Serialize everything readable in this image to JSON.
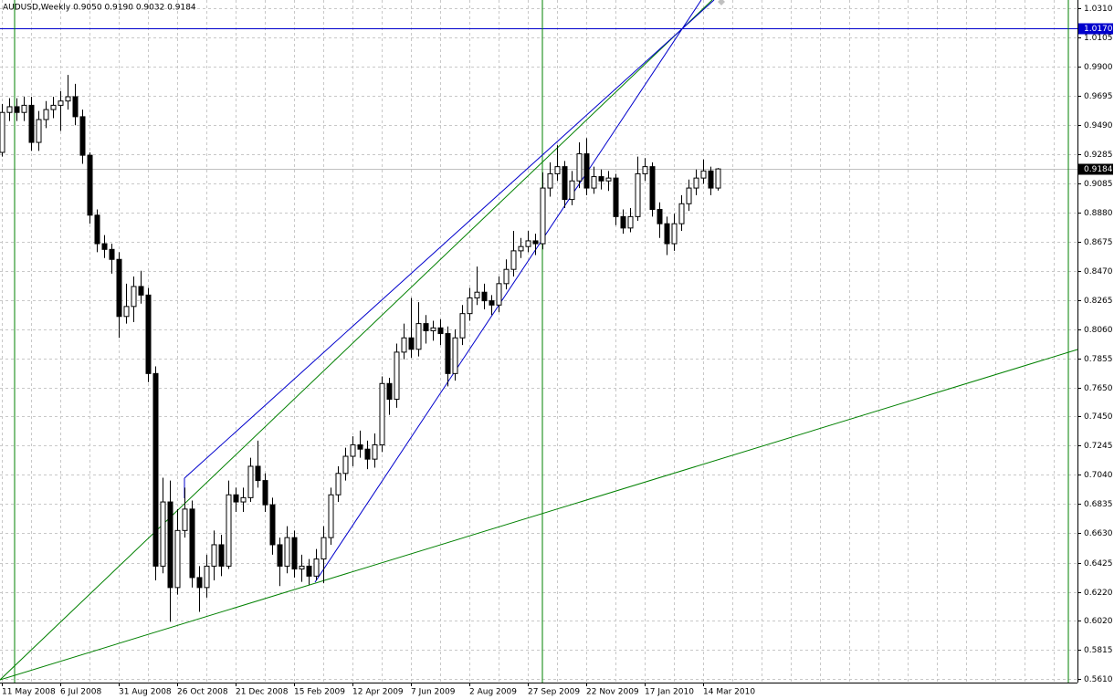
{
  "chart_data": {
    "type": "candlestick",
    "title": "AUDUSD,Weekly 0.9050 0.9190 0.9032 0.9184",
    "categories": [
      "11 May 2008",
      null,
      null,
      null,
      null,
      null,
      null,
      null,
      "6 Jul 2008",
      null,
      null,
      null,
      null,
      null,
      null,
      null,
      "31 Aug 2008",
      null,
      null,
      null,
      null,
      null,
      null,
      null,
      "26 Oct 2008",
      null,
      null,
      null,
      null,
      null,
      null,
      null,
      "21 Dec 2008",
      null,
      null,
      null,
      null,
      null,
      null,
      null,
      "15 Feb 2009",
      null,
      null,
      null,
      null,
      null,
      null,
      null,
      "12 Apr 2009",
      null,
      null,
      null,
      null,
      null,
      null,
      null,
      "7 Jun 2009",
      null,
      null,
      null,
      null,
      null,
      null,
      null,
      "2 Aug 2009",
      null,
      null,
      null,
      null,
      null,
      null,
      null,
      "27 Sep 2009",
      null,
      null,
      null,
      null,
      null,
      null,
      null,
      "22 Nov 2009",
      null,
      null,
      null,
      null,
      null,
      null,
      null,
      "17 Jan 2010",
      null,
      null,
      null,
      null,
      null,
      null,
      null,
      "14 Mar 2010",
      null,
      null
    ],
    "open": [
      0.93,
      0.958,
      0.962,
      0.958,
      0.963,
      0.937,
      0.953,
      0.96,
      0.963,
      0.966,
      0.969,
      0.955,
      0.928,
      0.886,
      0.866,
      0.862,
      0.855,
      0.815,
      0.822,
      0.836,
      0.83,
      0.775,
      0.64,
      0.685,
      0.625,
      0.665,
      0.68,
      0.632,
      0.625,
      0.64,
      0.655,
      0.64,
      0.69,
      0.685,
      0.688,
      0.71,
      0.7,
      0.683,
      0.655,
      0.64,
      0.66,
      0.638,
      0.64,
      0.633,
      0.645,
      0.66,
      0.69,
      0.705,
      0.717,
      0.725,
      0.722,
      0.715,
      0.725,
      0.768,
      0.757,
      0.79,
      0.8,
      0.792,
      0.81,
      0.805,
      0.807,
      0.803,
      0.775,
      0.8,
      0.817,
      0.828,
      0.832,
      0.826,
      0.823,
      0.838,
      0.848,
      0.861,
      0.864,
      0.868,
      0.866,
      0.905,
      0.915,
      0.92,
      0.897,
      0.91,
      0.929,
      0.905,
      0.913,
      0.91,
      0.912,
      0.885,
      0.877,
      0.885,
      0.915,
      0.92,
      0.89,
      0.88,
      0.866,
      0.88,
      0.894,
      0.905,
      0.912,
      0.917,
      0.905
    ],
    "high": [
      0.964,
      0.968,
      0.968,
      0.969,
      0.969,
      0.959,
      0.966,
      0.969,
      0.973,
      0.9843,
      0.978,
      0.96,
      0.93,
      0.89,
      0.872,
      0.866,
      0.86,
      0.838,
      0.843,
      0.847,
      0.835,
      0.78,
      0.702,
      0.7,
      0.68,
      0.695,
      0.686,
      0.64,
      0.648,
      0.665,
      0.662,
      0.7,
      0.695,
      0.695,
      0.716,
      0.728,
      0.705,
      0.688,
      0.66,
      0.668,
      0.665,
      0.648,
      0.645,
      0.652,
      0.668,
      0.695,
      0.71,
      0.723,
      0.731,
      0.735,
      0.728,
      0.733,
      0.773,
      0.772,
      0.796,
      0.81,
      0.828,
      0.825,
      0.816,
      0.812,
      0.813,
      0.808,
      0.806,
      0.823,
      0.835,
      0.85,
      0.838,
      0.83,
      0.843,
      0.855,
      0.875,
      0.87,
      0.875,
      0.873,
      0.916,
      0.923,
      0.935,
      0.924,
      0.917,
      0.937,
      0.94,
      0.92,
      0.918,
      0.917,
      0.915,
      0.89,
      0.891,
      0.927,
      0.926,
      0.923,
      0.895,
      0.885,
      0.887,
      0.9,
      0.911,
      0.918,
      0.925,
      0.92,
      0.919
    ],
    "low": [
      0.927,
      0.952,
      0.952,
      0.952,
      0.931,
      0.931,
      0.947,
      0.954,
      0.945,
      0.96,
      0.949,
      0.922,
      0.88,
      0.86,
      0.856,
      0.845,
      0.8,
      0.81,
      0.811,
      0.824,
      0.769,
      0.63,
      0.635,
      0.601,
      0.62,
      0.66,
      0.625,
      0.608,
      0.618,
      0.63,
      0.633,
      0.638,
      0.678,
      0.678,
      0.685,
      0.695,
      0.678,
      0.648,
      0.626,
      0.635,
      0.632,
      0.629,
      0.627,
      0.63,
      0.628,
      0.655,
      0.685,
      0.7,
      0.71,
      0.716,
      0.708,
      0.709,
      0.72,
      0.746,
      0.751,
      0.785,
      0.786,
      0.787,
      0.796,
      0.798,
      0.795,
      0.766,
      0.77,
      0.795,
      0.812,
      0.823,
      0.82,
      0.816,
      0.818,
      0.834,
      0.843,
      0.856,
      0.86,
      0.858,
      0.862,
      0.899,
      0.91,
      0.891,
      0.893,
      0.905,
      0.9,
      0.901,
      0.904,
      0.903,
      0.879,
      0.873,
      0.874,
      0.882,
      0.91,
      0.885,
      0.87,
      0.858,
      0.861,
      0.875,
      0.889,
      0.9,
      0.908,
      0.9,
      0.9032
    ],
    "close": [
      0.958,
      0.962,
      0.958,
      0.963,
      0.937,
      0.953,
      0.96,
      0.963,
      0.966,
      0.969,
      0.955,
      0.928,
      0.886,
      0.866,
      0.862,
      0.855,
      0.815,
      0.822,
      0.836,
      0.83,
      0.775,
      0.64,
      0.685,
      0.625,
      0.665,
      0.68,
      0.632,
      0.625,
      0.64,
      0.655,
      0.64,
      0.69,
      0.685,
      0.688,
      0.71,
      0.7,
      0.683,
      0.655,
      0.64,
      0.66,
      0.638,
      0.64,
      0.633,
      0.645,
      0.66,
      0.69,
      0.705,
      0.717,
      0.725,
      0.722,
      0.715,
      0.725,
      0.768,
      0.757,
      0.79,
      0.8,
      0.792,
      0.81,
      0.805,
      0.807,
      0.803,
      0.775,
      0.8,
      0.817,
      0.828,
      0.832,
      0.826,
      0.823,
      0.838,
      0.848,
      0.861,
      0.864,
      0.868,
      0.866,
      0.905,
      0.915,
      0.92,
      0.897,
      0.91,
      0.929,
      0.905,
      0.913,
      0.91,
      0.912,
      0.885,
      0.877,
      0.885,
      0.915,
      0.92,
      0.89,
      0.88,
      0.866,
      0.88,
      0.894,
      0.905,
      0.912,
      0.917,
      0.905,
      0.9184
    ],
    "up_color": "#ffffff",
    "down_color": "#000000",
    "ylim": [
      0.5584,
      1.0368
    ],
    "yticks": [
      {
        "value": 0.561,
        "label": "0.5610"
      },
      {
        "value": 0.5815,
        "label": "0.5815"
      },
      {
        "value": 0.602,
        "label": "0.6020"
      },
      {
        "value": 0.622,
        "label": "0.6220"
      },
      {
        "value": 0.6425,
        "label": "0.6425"
      },
      {
        "value": 0.663,
        "label": "0.6630"
      },
      {
        "value": 0.6835,
        "label": "0.6835"
      },
      {
        "value": 0.704,
        "label": "0.7040"
      },
      {
        "value": 0.7245,
        "label": "0.7245"
      },
      {
        "value": 0.745,
        "label": "0.7450"
      },
      {
        "value": 0.765,
        "label": "0.7650"
      },
      {
        "value": 0.7855,
        "label": "0.7855"
      },
      {
        "value": 0.806,
        "label": "0.8060"
      },
      {
        "value": 0.8265,
        "label": "0.8265"
      },
      {
        "value": 0.847,
        "label": "0.8470"
      },
      {
        "value": 0.8675,
        "label": "0.8675"
      },
      {
        "value": 0.888,
        "label": "0.8880"
      },
      {
        "value": 0.9085,
        "label": "0.9085"
      },
      {
        "value": 0.9285,
        "label": "0.9285"
      },
      {
        "value": 0.949,
        "label": "0.9490"
      },
      {
        "value": 0.9695,
        "label": "0.9695"
      },
      {
        "value": 0.99,
        "label": "0.9900"
      },
      {
        "value": 1.0105,
        "label": "1.0105"
      },
      {
        "value": 1.031,
        "label": "1.0310"
      }
    ],
    "grid": true,
    "hline": {
      "value": 1.017,
      "label": "1.0170",
      "color": "#0000cc"
    }
  }
}
